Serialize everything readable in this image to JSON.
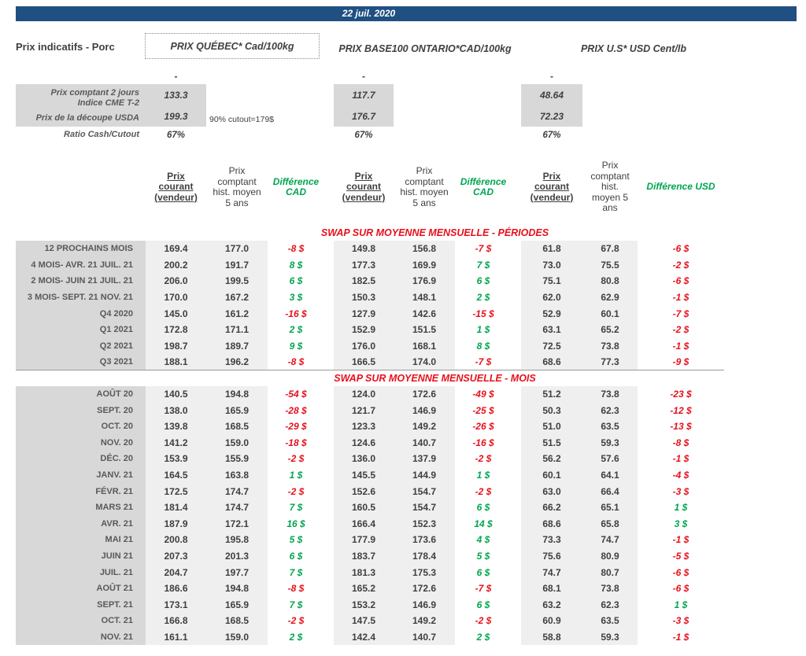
{
  "header_bar": {
    "date": "22 juil. 2020"
  },
  "page_title": "Prix indicatifs - Porc",
  "regions": [
    {
      "title": "PRIX QUÉBEC* Cad/100kg"
    },
    {
      "title": "PRIX BASE100 ONTARIO*CAD/100kg"
    },
    {
      "title": "PRIX U.S* USD Cent/lb"
    }
  ],
  "spot": {
    "dashes": [
      "-",
      "-",
      "-"
    ],
    "rows": [
      {
        "label": "Prix comptant 2 jours\nIndice CME T-2",
        "values": [
          "133.3",
          "117.7",
          "48.64"
        ]
      },
      {
        "label": "Prix de la découpe USDA",
        "note": "90% cutout=179$",
        "values": [
          "199.3",
          "176.7",
          "72.23"
        ]
      },
      {
        "label": "Ratio Cash/Cutout",
        "values": [
          "67%",
          "67%",
          "67%"
        ]
      }
    ]
  },
  "columns": {
    "current": "Prix\ncourant\n(vendeur)",
    "hist": "Prix\ncomptant\nhist. moyen\n5 ans",
    "hist_us": "Prix\ncomptant\nhist.\nmoyen 5\nans",
    "diff_cad": "Différence\nCAD",
    "diff_usd": "Différence USD"
  },
  "colors": {
    "header_bar": "#1f5081",
    "section_title": "#e8101c",
    "negative": "#e8101c",
    "positive": "#00a550",
    "diff_header": "#00a550"
  },
  "sections": [
    {
      "title": "SWAP SUR MOYENNE MENSUELLE - PÉRIODES",
      "rows": [
        {
          "label": "12 PROCHAINS MOIS",
          "values": [
            "169.4",
            "177.0",
            "-8 $",
            "149.8",
            "156.8",
            "-7 $",
            "61.8",
            "67.8",
            "-6 $"
          ]
        },
        {
          "label": "4 MOIS- AVR. 21 JUIL. 21",
          "values": [
            "200.2",
            "191.7",
            "8 $",
            "177.3",
            "169.9",
            "7 $",
            "73.0",
            "75.5",
            "-2 $"
          ]
        },
        {
          "label": "2 MOIS- JUIN 21 JUIL. 21",
          "values": [
            "206.0",
            "199.5",
            "6 $",
            "182.5",
            "176.9",
            "6 $",
            "75.1",
            "80.8",
            "-6 $"
          ]
        },
        {
          "label": "3 MOIS- SEPT. 21 NOV. 21",
          "values": [
            "170.0",
            "167.2",
            "3 $",
            "150.3",
            "148.1",
            "2 $",
            "62.0",
            "62.9",
            "-1 $"
          ]
        },
        {
          "label": "Q4 2020",
          "values": [
            "145.0",
            "161.2",
            "-16 $",
            "127.9",
            "142.6",
            "-15 $",
            "52.9",
            "60.1",
            "-7 $"
          ]
        },
        {
          "label": "Q1 2021",
          "values": [
            "172.8",
            "171.1",
            "2 $",
            "152.9",
            "151.5",
            "1 $",
            "63.1",
            "65.2",
            "-2 $"
          ]
        },
        {
          "label": "Q2 2021",
          "values": [
            "198.7",
            "189.7",
            "9 $",
            "176.0",
            "168.1",
            "8 $",
            "72.5",
            "73.8",
            "-1 $"
          ]
        },
        {
          "label": "Q3 2021",
          "values": [
            "188.1",
            "196.2",
            "-8 $",
            "166.5",
            "174.0",
            "-7 $",
            "68.6",
            "77.3",
            "-9 $"
          ]
        }
      ]
    },
    {
      "title": "SWAP SUR MOYENNE MENSUELLE - MOIS",
      "rows": [
        {
          "label": "AOÛT 20",
          "values": [
            "140.5",
            "194.8",
            "-54 $",
            "124.0",
            "172.6",
            "-49 $",
            "51.2",
            "73.8",
            "-23 $"
          ]
        },
        {
          "label": "SEPT. 20",
          "values": [
            "138.0",
            "165.9",
            "-28 $",
            "121.7",
            "146.9",
            "-25 $",
            "50.3",
            "62.3",
            "-12 $"
          ]
        },
        {
          "label": "OCT. 20",
          "values": [
            "139.8",
            "168.5",
            "-29 $",
            "123.3",
            "149.2",
            "-26 $",
            "51.0",
            "63.5",
            "-13 $"
          ]
        },
        {
          "label": "NOV. 20",
          "values": [
            "141.2",
            "159.0",
            "-18 $",
            "124.6",
            "140.7",
            "-16 $",
            "51.5",
            "59.3",
            "-8 $"
          ]
        },
        {
          "label": "DÉC. 20",
          "values": [
            "153.9",
            "155.9",
            "-2 $",
            "136.0",
            "137.9",
            "-2 $",
            "56.2",
            "57.6",
            "-1 $"
          ]
        },
        {
          "label": "JANV. 21",
          "values": [
            "164.5",
            "163.8",
            "1 $",
            "145.5",
            "144.9",
            "1 $",
            "60.1",
            "64.1",
            "-4 $"
          ]
        },
        {
          "label": "FÉVR. 21",
          "values": [
            "172.5",
            "174.7",
            "-2 $",
            "152.6",
            "154.7",
            "-2 $",
            "63.0",
            "66.4",
            "-3 $"
          ]
        },
        {
          "label": "MARS 21",
          "values": [
            "181.4",
            "174.7",
            "7 $",
            "160.5",
            "154.7",
            "6 $",
            "66.2",
            "65.1",
            "1 $"
          ]
        },
        {
          "label": "AVR. 21",
          "values": [
            "187.9",
            "172.1",
            "16 $",
            "166.4",
            "152.3",
            "14 $",
            "68.6",
            "65.8",
            "3 $"
          ]
        },
        {
          "label": "MAI 21",
          "values": [
            "200.8",
            "195.8",
            "5 $",
            "177.9",
            "173.6",
            "4 $",
            "73.3",
            "74.7",
            "-1 $"
          ]
        },
        {
          "label": "JUIN 21",
          "values": [
            "207.3",
            "201.3",
            "6 $",
            "183.7",
            "178.4",
            "5 $",
            "75.6",
            "80.9",
            "-5 $"
          ]
        },
        {
          "label": "JUIL. 21",
          "values": [
            "204.7",
            "197.7",
            "7 $",
            "181.3",
            "175.3",
            "6 $",
            "74.7",
            "80.7",
            "-6 $"
          ]
        },
        {
          "label": "AOÛT 21",
          "values": [
            "186.6",
            "194.8",
            "-8 $",
            "165.2",
            "172.6",
            "-7 $",
            "68.1",
            "73.8",
            "-6 $"
          ]
        },
        {
          "label": "SEPT. 21",
          "values": [
            "173.1",
            "165.9",
            "7 $",
            "153.2",
            "146.9",
            "6 $",
            "63.2",
            "62.3",
            "1 $"
          ]
        },
        {
          "label": "OCT. 21",
          "values": [
            "166.8",
            "168.5",
            "-2 $",
            "147.5",
            "149.2",
            "-2 $",
            "60.9",
            "63.5",
            "-3 $"
          ]
        },
        {
          "label": "NOV. 21",
          "values": [
            "161.1",
            "159.0",
            "2 $",
            "142.4",
            "140.7",
            "2 $",
            "58.8",
            "59.3",
            "-1 $"
          ]
        }
      ]
    }
  ]
}
